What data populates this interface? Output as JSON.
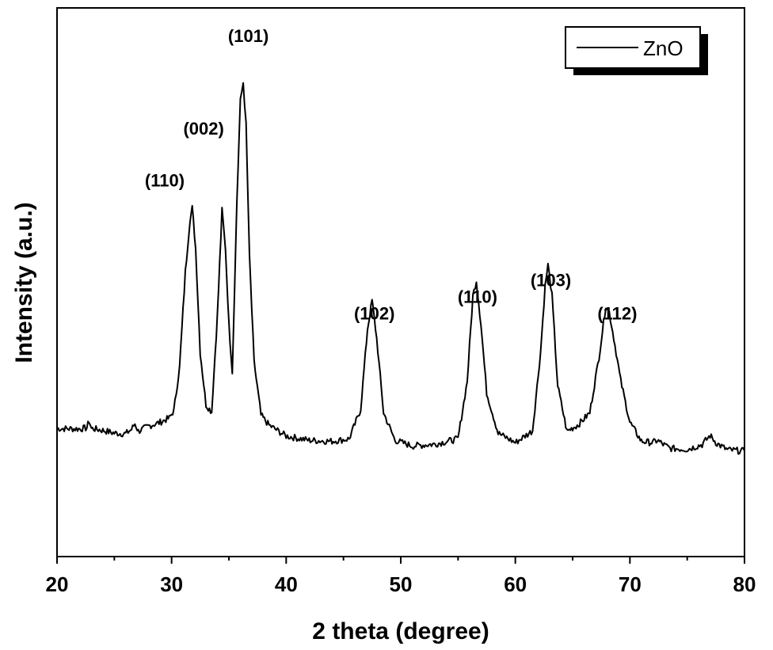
{
  "chart_data": {
    "type": "line",
    "xlabel": "2 theta (degree)",
    "ylabel": "Intensity (a.u.)",
    "xlim": [
      20,
      80
    ],
    "ylim": [
      0,
      100
    ],
    "x_ticks": [
      20,
      30,
      40,
      50,
      60,
      70,
      80
    ],
    "x_tick_labels": [
      "20",
      "30",
      "40",
      "50",
      "60",
      "70",
      "80"
    ],
    "y_ticks_labeled": false,
    "grid": false,
    "legend": {
      "position": "top-right",
      "entries": [
        "ZnO"
      ]
    },
    "line_color": "#000000",
    "series": [
      {
        "name": "ZnO",
        "x": [
          20,
          22,
          22.6,
          22.8,
          23.0,
          24,
          25,
          26,
          26.5,
          26.8,
          27.1,
          28,
          29,
          29.8,
          30.2,
          30.7,
          31.2,
          31.6,
          31.8,
          32.1,
          32.5,
          33.0,
          33.5,
          34.0,
          34.4,
          34.7,
          35.0,
          35.3,
          35.7,
          36.0,
          36.25,
          36.5,
          36.8,
          37.2,
          37.8,
          38.5,
          40,
          42,
          44,
          45.5,
          46.5,
          47.1,
          47.5,
          47.9,
          48.5,
          49.5,
          51,
          53,
          55,
          55.8,
          56.3,
          56.6,
          57.0,
          57.5,
          58.5,
          60,
          61.5,
          62.2,
          62.6,
          62.85,
          63.2,
          63.7,
          64.5,
          65.5,
          66.5,
          67.3,
          67.9,
          68.2,
          68.6,
          69.2,
          70,
          71,
          72,
          72.4,
          72.8,
          73.5,
          75,
          76.3,
          77,
          77.6,
          78.5,
          80
        ],
        "y": [
          14.0,
          13.9,
          14.1,
          15.6,
          14.0,
          13.6,
          13.0,
          12.9,
          13.8,
          15.0,
          13.4,
          14.5,
          15.3,
          16.2,
          17.8,
          27,
          47,
          58,
          60.5,
          52,
          30,
          19,
          17.5,
          38,
          60,
          52,
          36,
          26,
          62,
          83,
          87,
          78,
          50,
          28,
          16.8,
          14.7,
          12.4,
          11.5,
          11.3,
          11.8,
          18,
          35,
          41,
          33,
          17.3,
          11.5,
          10.3,
          10.7,
          11.8,
          24,
          42,
          45.2,
          36,
          21.5,
          13.0,
          11.0,
          13.5,
          30,
          44,
          48.5,
          42,
          23,
          13.4,
          14.8,
          17.3,
          29,
          40,
          38.5,
          33,
          24,
          15.3,
          11.3,
          11.0,
          11.5,
          10.8,
          9.8,
          9.6,
          10.6,
          12.5,
          10.8,
          9.5,
          9.2
        ]
      }
    ],
    "annotations": [
      {
        "text": "(110)",
        "x": 29.4,
        "y": 65
      },
      {
        "text": "(002)",
        "x": 32.8,
        "y": 76
      },
      {
        "text": "(101)",
        "x": 36.7,
        "y": 95.5
      },
      {
        "text": "(102)",
        "x": 47.7,
        "y": 37
      },
      {
        "text": "(110)",
        "x": 56.7,
        "y": 40.5
      },
      {
        "text": "(103)",
        "x": 63.1,
        "y": 44
      },
      {
        "text": "(112)",
        "x": 68.9,
        "y": 37
      }
    ]
  }
}
